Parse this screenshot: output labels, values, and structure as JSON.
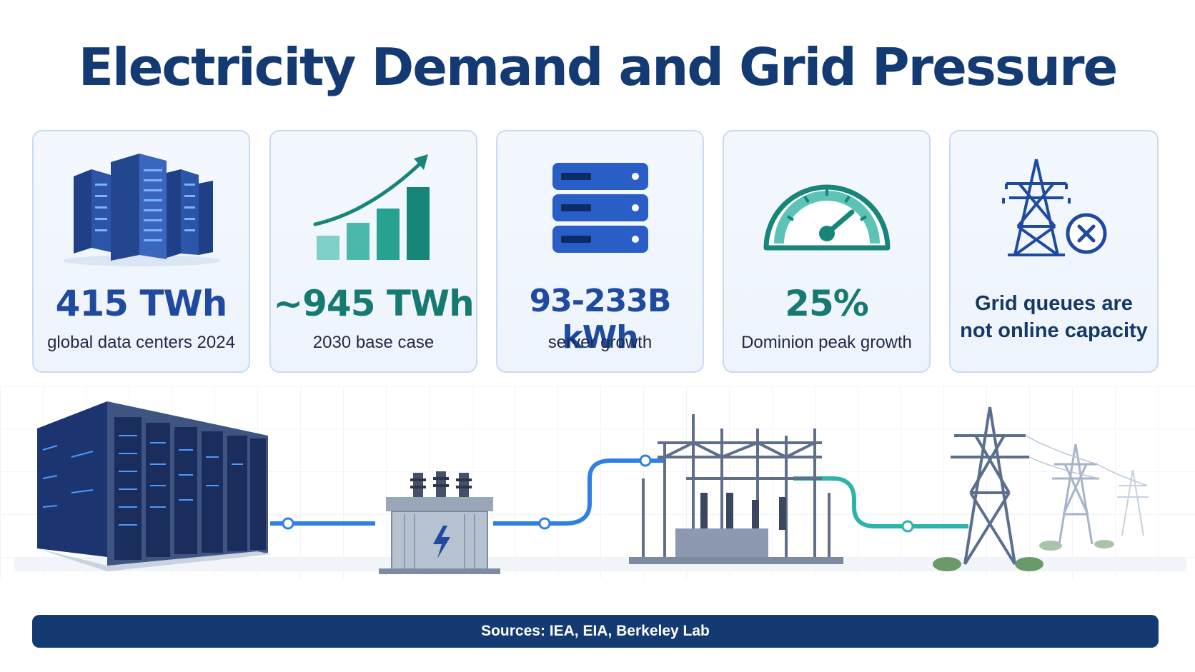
{
  "title": "Electricity Demand and Grid Pressure",
  "colors": {
    "navy": "#143a73",
    "blue": "#2f6fd6",
    "teal": "#1f9e8f",
    "card_border": "#c9daf1",
    "card_bg": "#f1f6fd"
  },
  "cards": [
    {
      "icon": "data-center-icon",
      "stat": "415 TWh",
      "caption": "global data centers 2024",
      "stat_color": "#1f4aa0"
    },
    {
      "icon": "growth-chart-icon",
      "stat": "~945 TWh",
      "caption": "2030 base case",
      "stat_color": "#167a72"
    },
    {
      "icon": "server-stack-icon",
      "stat": "93-233B kWh",
      "caption": "server growth",
      "stat_color": "#1f4aa0"
    },
    {
      "icon": "gauge-icon",
      "stat": "25%",
      "caption": "Dominion peak growth",
      "stat_color": "#167a72"
    },
    {
      "icon": "transmission-tower-blocked-icon",
      "note_line1": "Grid queues are",
      "note_line2": "not online capacity"
    }
  ],
  "scene": {
    "elements": [
      "data-center-icon",
      "transformer-icon",
      "substation-icon",
      "transmission-tower-icon"
    ]
  },
  "footer": {
    "sources": "Sources: IEA, EIA, Berkeley Lab"
  }
}
